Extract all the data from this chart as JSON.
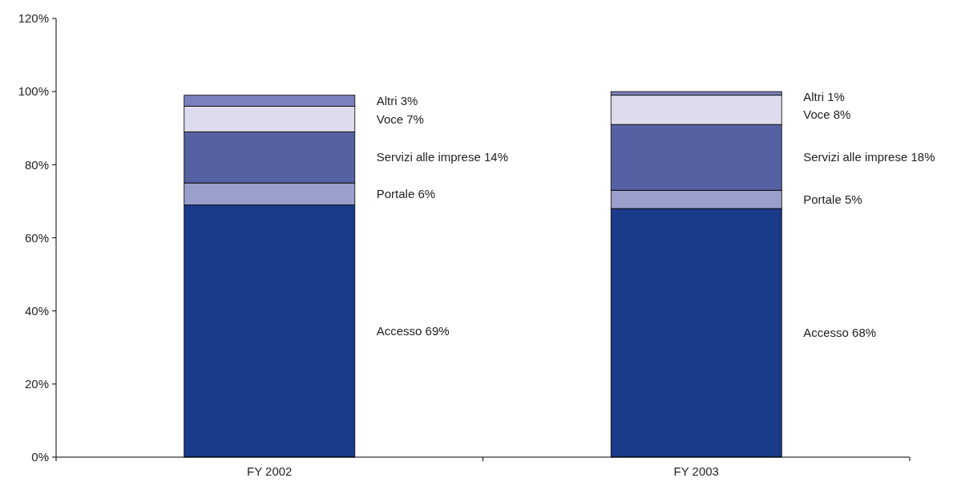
{
  "chart_data": {
    "type": "bar",
    "stacked": true,
    "categories": [
      "FY 2002",
      "FY 2003"
    ],
    "series": [
      {
        "name": "Accesso",
        "color": "#1a3a8a",
        "values": [
          69,
          68
        ],
        "value_labels": [
          "69%",
          "68%"
        ]
      },
      {
        "name": "Portale",
        "color": "#9b9fcc",
        "values": [
          6,
          5
        ],
        "value_labels": [
          "6%",
          "5%"
        ]
      },
      {
        "name": "Servizi alle imprese",
        "color": "#5661a3",
        "values": [
          14,
          18
        ],
        "value_labels": [
          "14%",
          "18%"
        ]
      },
      {
        "name": "Voce",
        "color": "#dcdcec",
        "values": [
          7,
          8
        ],
        "value_labels": [
          "7%",
          "8%"
        ]
      },
      {
        "name": "Altri",
        "color": "#7a80bb",
        "values": [
          3,
          1
        ],
        "value_labels": [
          "3%",
          "1%"
        ]
      }
    ],
    "ylim": [
      0,
      120
    ],
    "yticks": [
      {
        "value": 0,
        "label": "0%"
      },
      {
        "value": 20,
        "label": "20%"
      },
      {
        "value": 40,
        "label": "40%"
      },
      {
        "value": 60,
        "label": "60%"
      },
      {
        "value": 80,
        "label": "80%"
      },
      {
        "value": 100,
        "label": "100%"
      },
      {
        "value": 120,
        "label": "120%"
      }
    ],
    "grid": false
  }
}
